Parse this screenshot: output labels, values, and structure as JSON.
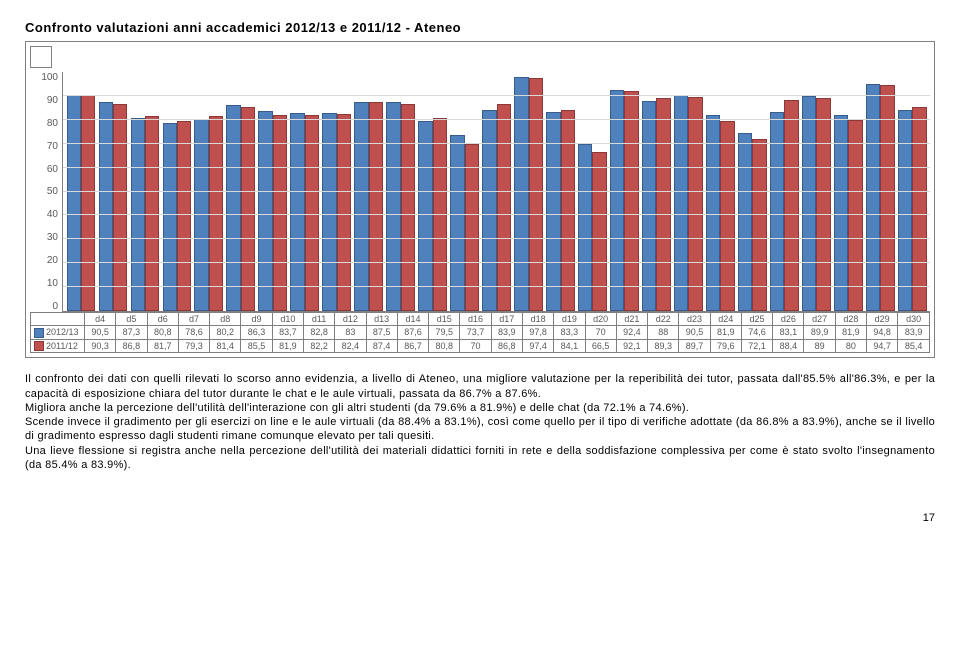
{
  "title": "Confronto valutazioni anni accademici 2012/13 e 2011/12 - Ateneo",
  "chart": {
    "type": "bar",
    "ylim": [
      0,
      100
    ],
    "ytick_step": 10,
    "background_color": "#ffffff",
    "grid_color": "#d9d9d9",
    "axis_color": "#808080",
    "categories": [
      "d4",
      "d5",
      "d6",
      "d7",
      "d8",
      "d9",
      "d10",
      "d11",
      "d12",
      "d13",
      "d14",
      "d15",
      "d16",
      "d17",
      "d18",
      "d19",
      "d20",
      "d21",
      "d22",
      "d23",
      "d24",
      "d25",
      "d26",
      "d27",
      "d28",
      "d29",
      "d30"
    ],
    "series": [
      {
        "name": "2012/13",
        "color": "#4f81bd",
        "border": "#385d8a",
        "values": [
          90.5,
          87.3,
          80.8,
          78.6,
          80.2,
          86.3,
          83.7,
          82.8,
          83,
          87.5,
          87.6,
          79.5,
          73.7,
          83.9,
          97.8,
          83.3,
          70,
          92.4,
          88,
          90.5,
          81.9,
          74.6,
          83.1,
          89.9,
          81.9,
          94.8,
          83.9
        ]
      },
      {
        "name": "2011/12",
        "color": "#c0504d",
        "border": "#8c3836",
        "values": [
          90.3,
          86.8,
          81.7,
          79.3,
          81.4,
          85.5,
          81.9,
          82.2,
          82.4,
          87.4,
          86.7,
          80.8,
          70,
          86.8,
          97.4,
          84.1,
          66.5,
          92.1,
          89.3,
          89.7,
          79.6,
          72.1,
          88.4,
          89,
          80,
          94.7,
          85.4
        ]
      }
    ],
    "font_size_axis": 10
  },
  "body": {
    "p1_a": "Il confronto dei dati con quelli rilevati lo scorso anno evidenzia, a livello di Ateneo, una migliore valutazione per la reperibilità dei tutor, passata dall'85.5% all'86.3%, e per la capacità di esposizione chiara del tutor durante le chat e le aule virtuali, passata da 86.7% a 87.6%.",
    "p2": "Migliora anche la percezione dell'utilità dell'interazione con gli altri studenti (da 79.6% a 81.9%) e delle chat (da 72.1% a 74.6%).",
    "p3": "Scende invece il gradimento per gli esercizi on line e le aule virtuali (da 88.4% a 83.1%), così come quello per il tipo di verifiche adottate (da 86.8% a 83.9%), anche se il livello di gradimento espresso dagli studenti rimane comunque elevato per tali quesiti.",
    "p4": "Una lieve flessione si registra anche nella percezione dell'utilità dei materiali didattici forniti in rete e della soddisfazione complessiva per come è stato svolto l'insegnamento (da 85.4% a 83.9%)."
  },
  "page_num": "17"
}
